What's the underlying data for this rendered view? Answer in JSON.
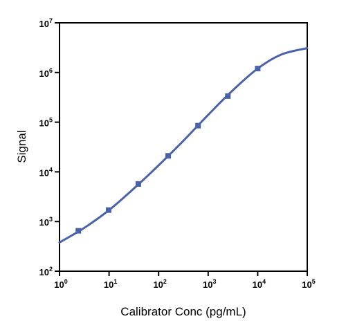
{
  "chart_data": {
    "type": "scatter",
    "xlabel": "Calibrator Conc (pg/mL)",
    "ylabel": "Signal",
    "x_scale": "log",
    "y_scale": "log",
    "xlim": [
      1,
      100000
    ],
    "ylim": [
      100,
      10000000
    ],
    "x_ticks": [
      {
        "value": 1,
        "base": "10",
        "exp": "0"
      },
      {
        "value": 10,
        "base": "10",
        "exp": "1"
      },
      {
        "value": 100,
        "base": "10",
        "exp": "2"
      },
      {
        "value": 1000,
        "base": "10",
        "exp": "3"
      },
      {
        "value": 10000,
        "base": "10",
        "exp": "4"
      },
      {
        "value": 100000,
        "base": "10",
        "exp": "5"
      }
    ],
    "y_ticks": [
      {
        "value": 100,
        "base": "10",
        "exp": "2"
      },
      {
        "value": 1000,
        "base": "10",
        "exp": "3"
      },
      {
        "value": 10000,
        "base": "10",
        "exp": "4"
      },
      {
        "value": 100000,
        "base": "10",
        "exp": "5"
      },
      {
        "value": 1000000,
        "base": "10",
        "exp": "6"
      },
      {
        "value": 10000000,
        "base": "10",
        "exp": "7"
      }
    ],
    "grid": false,
    "series": [
      {
        "marker": "square",
        "color": "#4a63a8",
        "points": [
          {
            "x": 2.4,
            "y": 650
          },
          {
            "x": 9.8,
            "y": 1700
          },
          {
            "x": 39,
            "y": 5700
          },
          {
            "x": 156,
            "y": 21000
          },
          {
            "x": 625,
            "y": 85000
          },
          {
            "x": 2500,
            "y": 335000
          },
          {
            "x": 10000,
            "y": 1200000
          }
        ]
      }
    ],
    "fit_curve": {
      "color": "#4a63a8",
      "points": [
        {
          "x": 1,
          "y": 380
        },
        {
          "x": 3,
          "y": 720
        },
        {
          "x": 10,
          "y": 1700
        },
        {
          "x": 30,
          "y": 4400
        },
        {
          "x": 100,
          "y": 13500
        },
        {
          "x": 300,
          "y": 40000
        },
        {
          "x": 1000,
          "y": 140000
        },
        {
          "x": 3000,
          "y": 420000
        },
        {
          "x": 10000,
          "y": 1200000
        },
        {
          "x": 30000,
          "y": 2300000
        },
        {
          "x": 100000,
          "y": 3100000
        }
      ]
    }
  }
}
